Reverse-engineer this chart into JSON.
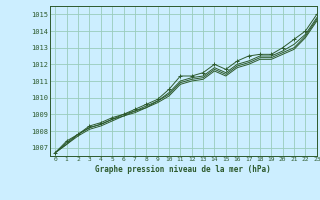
{
  "title": "Graphe pression niveau de la mer (hPa)",
  "bg_color": "#cceeff",
  "grid_color": "#99ccbb",
  "line_color": "#2d5a2d",
  "marker_color": "#2d5a2d",
  "xlim": [
    -0.5,
    23
  ],
  "ylim": [
    1006.5,
    1015.5
  ],
  "xticks": [
    0,
    1,
    2,
    3,
    4,
    5,
    6,
    7,
    8,
    9,
    10,
    11,
    12,
    13,
    14,
    15,
    16,
    17,
    18,
    19,
    20,
    21,
    22,
    23
  ],
  "yticks": [
    1007,
    1008,
    1009,
    1010,
    1011,
    1012,
    1013,
    1014,
    1015
  ],
  "series": [
    [
      1006.7,
      1007.4,
      1007.8,
      1008.3,
      1008.5,
      1008.8,
      1009.0,
      1009.3,
      1009.6,
      1009.9,
      1010.5,
      1011.3,
      1011.3,
      1011.5,
      1012.0,
      1011.7,
      1012.2,
      1012.5,
      1012.6,
      1012.6,
      1013.0,
      1013.5,
      1014.0,
      1015.0
    ],
    [
      1006.7,
      1007.3,
      1007.8,
      1008.2,
      1008.4,
      1008.7,
      1009.0,
      1009.2,
      1009.5,
      1009.8,
      1010.3,
      1011.0,
      1011.2,
      1011.3,
      1011.8,
      1011.5,
      1012.0,
      1012.2,
      1012.5,
      1012.5,
      1012.8,
      1013.2,
      1013.8,
      1014.8
    ],
    [
      1006.7,
      1007.2,
      1007.8,
      1008.2,
      1008.4,
      1008.7,
      1008.9,
      1009.2,
      1009.4,
      1009.8,
      1010.2,
      1010.9,
      1011.1,
      1011.2,
      1011.7,
      1011.4,
      1011.9,
      1012.1,
      1012.4,
      1012.4,
      1012.7,
      1013.0,
      1013.7,
      1014.7
    ],
    [
      1006.7,
      1007.2,
      1007.7,
      1008.1,
      1008.3,
      1008.6,
      1008.9,
      1009.1,
      1009.4,
      1009.7,
      1010.1,
      1010.8,
      1011.0,
      1011.1,
      1011.6,
      1011.3,
      1011.8,
      1012.0,
      1012.3,
      1012.3,
      1012.6,
      1012.9,
      1013.6,
      1014.6
    ]
  ],
  "markers_on_series": 0
}
